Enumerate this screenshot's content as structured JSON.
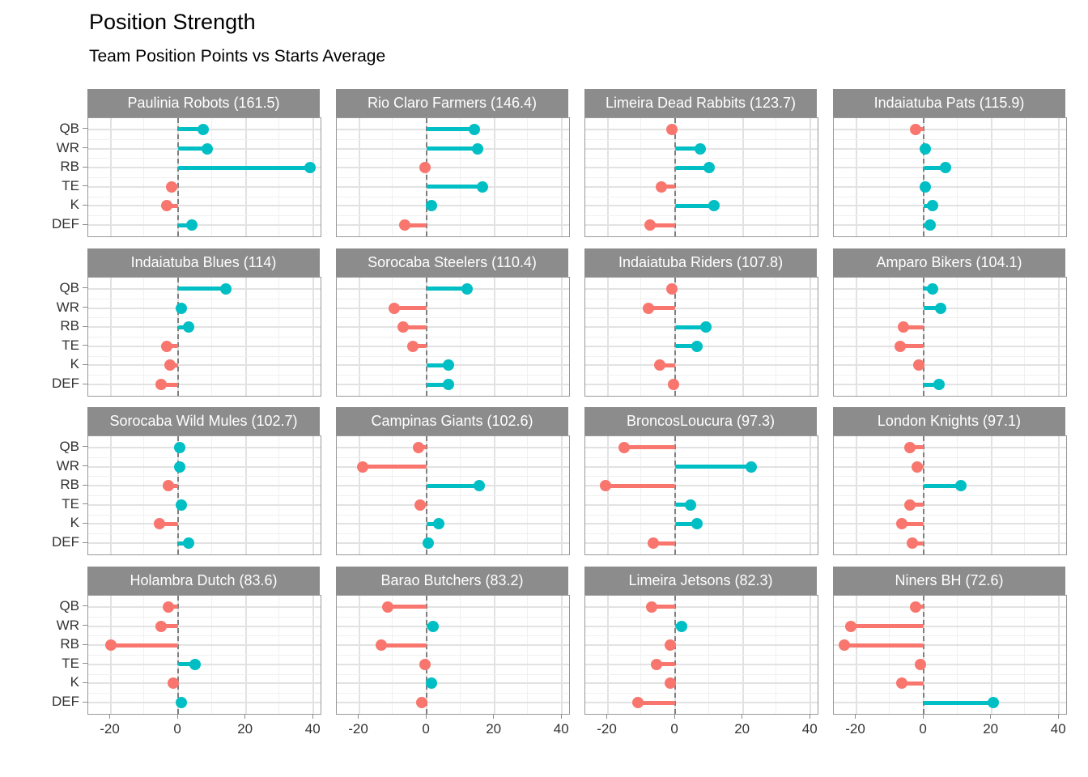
{
  "title": "Position Strength",
  "subtitle": "Team Position Points vs Starts Average",
  "colors": {
    "positive": "#00BFC4",
    "negative": "#F8766D",
    "strip_bg": "#8C8C8C",
    "strip_text": "#FFFFFF",
    "panel_bg": "#FFFFFF",
    "panel_border": "#999999",
    "grid_major": "#E2E2E2",
    "grid_minor": "#F0F0F0",
    "zero_line": "#7F7F7F",
    "axis_text": "#333333"
  },
  "chart_data": {
    "type": "lollipop-facet-grid",
    "facet_layout": {
      "rows": 4,
      "cols": 4
    },
    "categories": [
      "QB",
      "WR",
      "RB",
      "TE",
      "K",
      "DEF"
    ],
    "x_ticks": [
      -20,
      0,
      20,
      40
    ],
    "x_gridlines": [
      -20,
      -10,
      0,
      10,
      20,
      30,
      40
    ],
    "x_domain": [
      -26.6,
      42.1
    ],
    "title": "Position Strength",
    "subtitle": "Team Position Points vs Starts Average",
    "facets": [
      {
        "team": "Paulinia Robots",
        "total": 161.5,
        "label": "Paulinia Robots (161.5)",
        "values": [
          7.5,
          8.5,
          39,
          -2,
          -3.5,
          4
        ]
      },
      {
        "team": "Rio Claro Farmers",
        "total": 146.4,
        "label": "Rio Claro Farmers (146.4)",
        "values": [
          14,
          15,
          -0.5,
          16.5,
          1.5,
          -6.5
        ]
      },
      {
        "team": "Limeira Dead Rabbits",
        "total": 123.7,
        "label": "Limeira Dead Rabbits (123.7)",
        "values": [
          -1,
          7.5,
          10,
          -4,
          11.5,
          -7.5
        ]
      },
      {
        "team": "Indaiatuba Pats",
        "total": 115.9,
        "label": "Indaiatuba Pats (115.9)",
        "values": [
          -2.5,
          0.5,
          6.5,
          0.5,
          2.5,
          2
        ]
      },
      {
        "team": "Indaiatuba Blues",
        "total": 114,
        "label": "Indaiatuba Blues (114)",
        "values": [
          14,
          1,
          3,
          -3.5,
          -2.5,
          -5
        ]
      },
      {
        "team": "Sorocaba Steelers",
        "total": 110.4,
        "label": "Sorocaba Steelers (110.4)",
        "values": [
          12,
          -9.5,
          -7,
          -4,
          6.5,
          6.5
        ]
      },
      {
        "team": "Indaiatuba Riders",
        "total": 107.8,
        "label": "Indaiatuba Riders (107.8)",
        "values": [
          -1,
          -8,
          9,
          6.5,
          -4.5,
          -0.5
        ]
      },
      {
        "team": "Amparo Bikers",
        "total": 104.1,
        "label": "Amparo Bikers (104.1)",
        "values": [
          2.5,
          5,
          -6,
          -7,
          -1.5,
          4.5
        ]
      },
      {
        "team": "Sorocaba Wild Mules",
        "total": 102.7,
        "label": "Sorocaba Wild Mules (102.7)",
        "values": [
          0.5,
          0.5,
          -3,
          1,
          -5.5,
          3
        ]
      },
      {
        "team": "Campinas Giants",
        "total": 102.6,
        "label": "Campinas Giants (102.6)",
        "values": [
          -2.5,
          -19,
          15.5,
          -2,
          3.5,
          0.5
        ]
      },
      {
        "team": "BroncosLoucura",
        "total": 97.3,
        "label": "BroncosLoucura (97.3)",
        "values": [
          -15,
          22.5,
          -20.5,
          4.5,
          6.5,
          -6.5
        ]
      },
      {
        "team": "London Knights",
        "total": 97.1,
        "label": "London Knights (97.1)",
        "values": [
          -4,
          -2,
          11,
          -4,
          -6.5,
          -3.5
        ]
      },
      {
        "team": "Holambra Dutch",
        "total": 83.6,
        "label": "Holambra Dutch (83.6)",
        "values": [
          -3,
          -5,
          -20,
          5,
          -1.5,
          1
        ]
      },
      {
        "team": "Barao Butchers",
        "total": 83.2,
        "label": "Barao Butchers (83.2)",
        "values": [
          -11.5,
          2,
          -13.5,
          -0.5,
          1.5,
          -1.5
        ]
      },
      {
        "team": "Limeira Jetsons",
        "total": 82.3,
        "label": "Limeira Jetsons (82.3)",
        "values": [
          -7,
          2,
          -1.5,
          -5.5,
          -1.5,
          -11
        ]
      },
      {
        "team": "Niners BH",
        "total": 72.6,
        "label": "Niners BH (72.6)",
        "values": [
          -2.5,
          -21.5,
          -23.5,
          -1,
          -6.5,
          20.5
        ]
      }
    ]
  }
}
